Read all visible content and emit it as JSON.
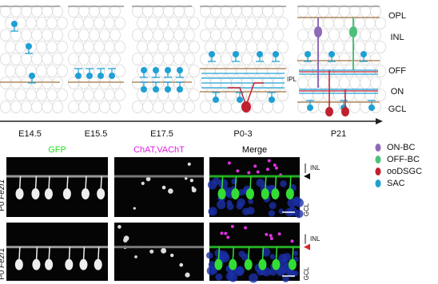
{
  "diagram": {
    "stages": [
      "E14.5",
      "E15.5",
      "E17.5",
      "P0-3",
      "P21"
    ],
    "layers": {
      "opl": "OPL",
      "inl": "INL",
      "off": "OFF",
      "ipl": "IPL",
      "on": "ON",
      "gcl": "GCL"
    }
  },
  "legend": [
    {
      "label": "ON-BC",
      "color": "#8e6bb8"
    },
    {
      "label": "OFF-BC",
      "color": "#4cc07a"
    },
    {
      "label": "ooDSGC",
      "color": "#c0202f"
    },
    {
      "label": "SAC",
      "color": "#1ea0d5"
    }
  ],
  "images": {
    "columns": [
      {
        "label": "GFP",
        "color": "#22dd22"
      },
      {
        "label": "ChAT,VAChT",
        "color": "#e020e0"
      },
      {
        "label": "Merge",
        "color": "#000000"
      }
    ],
    "rows": [
      {
        "prefix": "P0 ",
        "gene": "Fezf1",
        "sup": "GFP/+",
        "inl": "INL",
        "gcl": "GCL"
      },
      {
        "prefix": "P0 ",
        "gene": "Fezf1",
        "sup": "GFP/GFP",
        "inl": "INL",
        "gcl": "GCL"
      }
    ]
  }
}
